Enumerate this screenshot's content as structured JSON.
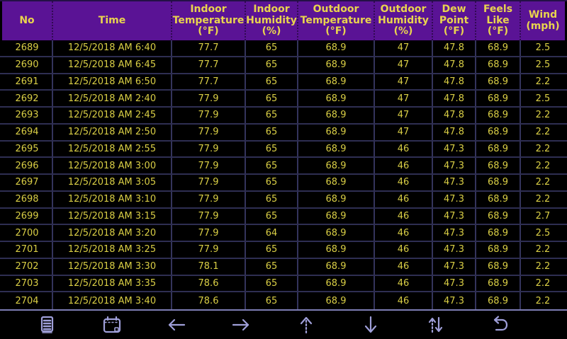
{
  "colors": {
    "header_bg": "#5a1395",
    "header_text": "#e9d44e",
    "cell_text": "#d9ce45",
    "grid_line": "#34345c",
    "row_divider": "#2e2e52",
    "toolbar_icon": "#9f9fd9",
    "divider": "#7d7db4",
    "background": "#000000"
  },
  "table": {
    "columns": [
      "No",
      "Time",
      "Indoor\nTemperature\n(°F)",
      "Indoor\nHumidity\n(%)",
      "Outdoor\nTemperature\n(°F)",
      "Outdoor\nHumidity\n(%)",
      "Dew\nPoint\n(°F)",
      "Feels\nLike\n(°F)",
      "Wind\n(mph)"
    ],
    "rows": [
      [
        "2689",
        "12/5/2018 AM 6:40",
        "77.7",
        "65",
        "68.9",
        "47",
        "47.8",
        "68.9",
        "2.5"
      ],
      [
        "2690",
        "12/5/2018 AM 6:45",
        "77.7",
        "65",
        "68.9",
        "47",
        "47.8",
        "68.9",
        "2.5"
      ],
      [
        "2691",
        "12/5/2018 AM 6:50",
        "77.7",
        "65",
        "68.9",
        "47",
        "47.8",
        "68.9",
        "2.2"
      ],
      [
        "2692",
        "12/5/2018 AM 2:40",
        "77.9",
        "65",
        "68.9",
        "47",
        "47.8",
        "68.9",
        "2.5"
      ],
      [
        "2693",
        "12/5/2018 AM 2:45",
        "77.9",
        "65",
        "68.9",
        "47",
        "47.8",
        "68.9",
        "2.2"
      ],
      [
        "2694",
        "12/5/2018 AM 2:50",
        "77.9",
        "65",
        "68.9",
        "47",
        "47.8",
        "68.9",
        "2.2"
      ],
      [
        "2695",
        "12/5/2018 AM 2:55",
        "77.9",
        "65",
        "68.9",
        "46",
        "47.3",
        "68.9",
        "2.2"
      ],
      [
        "2696",
        "12/5/2018 AM 3:00",
        "77.9",
        "65",
        "68.9",
        "46",
        "47.3",
        "68.9",
        "2.2"
      ],
      [
        "2697",
        "12/5/2018 AM 3:05",
        "77.9",
        "65",
        "68.9",
        "46",
        "47.3",
        "68.9",
        "2.2"
      ],
      [
        "2698",
        "12/5/2018 AM 3:10",
        "77.9",
        "65",
        "68.9",
        "46",
        "47.3",
        "68.9",
        "2.2"
      ],
      [
        "2699",
        "12/5/2018 AM 3:15",
        "77.9",
        "65",
        "68.9",
        "46",
        "47.3",
        "68.9",
        "2.7"
      ],
      [
        "2700",
        "12/5/2018 AM 3:20",
        "77.9",
        "64",
        "68.9",
        "46",
        "47.3",
        "68.9",
        "2.5"
      ],
      [
        "2701",
        "12/5/2018 AM 3:25",
        "77.9",
        "65",
        "68.9",
        "46",
        "47.3",
        "68.9",
        "2.2"
      ],
      [
        "2702",
        "12/5/2018 AM 3:30",
        "78.1",
        "65",
        "68.9",
        "46",
        "47.3",
        "68.9",
        "2.2"
      ],
      [
        "2703",
        "12/5/2018 AM 3:35",
        "78.6",
        "65",
        "68.9",
        "46",
        "47.3",
        "68.9",
        "2.2"
      ],
      [
        "2704",
        "12/5/2018 AM 3:40",
        "78.6",
        "65",
        "68.9",
        "46",
        "47.3",
        "68.9",
        "2.2"
      ]
    ]
  },
  "toolbar": {
    "icons": [
      "records-list",
      "calendar",
      "arrow-left",
      "arrow-right",
      "arrow-up",
      "arrow-down",
      "sort-arrows",
      "return"
    ]
  }
}
